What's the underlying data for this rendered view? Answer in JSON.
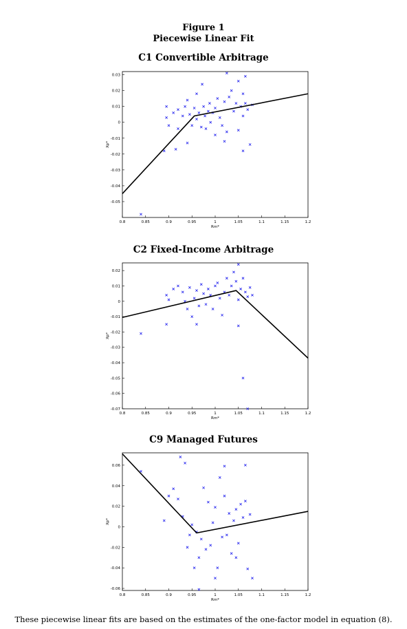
{
  "figure": {
    "label": "Figure 1",
    "title": "Piecewise Linear Fit",
    "caption": "These piecewise linear fits are based on the estimates of the one-factor model in equation (8)."
  },
  "chart_data": [
    {
      "type": "scatter",
      "title": "C1 Convertible Arbitrage",
      "xlabel": "Rm*",
      "ylabel": "Xp*",
      "xlim": [
        0.8,
        1.2
      ],
      "ylim": [
        -0.06,
        0.032
      ],
      "xticks": [
        "0.8",
        "0.85",
        "0.9",
        "0.95",
        "1",
        "1.05",
        "1.1",
        "1.15",
        "1.2"
      ],
      "yticks": [
        "0.03",
        "0.02",
        "0.01",
        "0",
        "-0.01",
        "-0.02",
        "-0.03",
        "-0.04",
        "-0.05"
      ],
      "ytick_values": [
        0.03,
        0.02,
        0.01,
        0,
        -0.01,
        -0.02,
        -0.03,
        -0.04,
        -0.05
      ],
      "fit": [
        [
          0.8,
          -0.045
        ],
        [
          0.955,
          0.004
        ],
        [
          1.2,
          0.018
        ]
      ],
      "points": [
        [
          0.895,
          0.01
        ],
        [
          0.895,
          0.003
        ],
        [
          0.9,
          -0.002
        ],
        [
          0.91,
          0.006
        ],
        [
          0.915,
          -0.017
        ],
        [
          0.92,
          0.008
        ],
        [
          0.93,
          0.004
        ],
        [
          0.935,
          0.01
        ],
        [
          0.94,
          0.014
        ],
        [
          0.94,
          -0.013
        ],
        [
          0.945,
          0.005
        ],
        [
          0.95,
          -0.002
        ],
        [
          0.955,
          0.009
        ],
        [
          0.96,
          0.002
        ],
        [
          0.96,
          0.018
        ],
        [
          0.965,
          0.006
        ],
        [
          0.97,
          -0.003
        ],
        [
          0.972,
          0.024
        ],
        [
          0.975,
          0.01
        ],
        [
          0.978,
          0.004
        ],
        [
          0.98,
          -0.004
        ],
        [
          0.985,
          0.007
        ],
        [
          0.988,
          0.012
        ],
        [
          0.99,
          0.0
        ],
        [
          0.995,
          0.006
        ],
        [
          1.0,
          0.009
        ],
        [
          1.005,
          0.015
        ],
        [
          1.01,
          0.003
        ],
        [
          1.015,
          -0.002
        ],
        [
          1.02,
          0.013
        ],
        [
          1.025,
          -0.006
        ],
        [
          1.03,
          0.016
        ],
        [
          1.025,
          0.031
        ],
        [
          1.035,
          0.02
        ],
        [
          1.04,
          0.007
        ],
        [
          1.045,
          0.012
        ],
        [
          1.05,
          0.026
        ],
        [
          1.05,
          -0.005
        ],
        [
          1.055,
          0.01
        ],
        [
          1.06,
          0.018
        ],
        [
          1.06,
          0.004
        ],
        [
          1.065,
          0.012
        ],
        [
          1.07,
          0.008
        ],
        [
          1.075,
          -0.014
        ],
        [
          1.08,
          0.011
        ],
        [
          1.065,
          0.029
        ],
        [
          0.89,
          -0.018
        ],
        [
          1.0,
          -0.008
        ],
        [
          1.02,
          -0.012
        ],
        [
          0.92,
          -0.004
        ],
        [
          1.06,
          -0.018
        ],
        [
          0.84,
          -0.058
        ]
      ]
    },
    {
      "type": "scatter",
      "title": "C2 Fixed-Income Arbitrage",
      "xlabel": "Rm*",
      "ylabel": "Xp*",
      "xlim": [
        0.8,
        1.2
      ],
      "ylim": [
        -0.07,
        0.025
      ],
      "xticks": [
        "0.8",
        "0.85",
        "0.9",
        "0.95",
        "1",
        "1.05",
        "1.1",
        "1.15",
        "1.2"
      ],
      "yticks": [
        "0.02",
        "0.01",
        "0",
        "-0.01",
        "-0.02",
        "-0.03",
        "-0.04",
        "-0.05",
        "-0.06",
        "-0.07"
      ],
      "ytick_values": [
        0.02,
        0.01,
        0,
        -0.01,
        -0.02,
        -0.03,
        -0.04,
        -0.05,
        -0.06,
        -0.07
      ],
      "fit": [
        [
          0.8,
          -0.0105
        ],
        [
          1.045,
          0.007
        ],
        [
          1.2,
          -0.037
        ]
      ],
      "points": [
        [
          0.84,
          -0.021
        ],
        [
          0.895,
          0.004
        ],
        [
          0.895,
          -0.015
        ],
        [
          0.9,
          0.001
        ],
        [
          0.91,
          0.008
        ],
        [
          0.92,
          0.01
        ],
        [
          0.93,
          0.006
        ],
        [
          0.935,
          0.0
        ],
        [
          0.94,
          -0.005
        ],
        [
          0.945,
          0.009
        ],
        [
          0.95,
          -0.01
        ],
        [
          0.955,
          0.002
        ],
        [
          0.96,
          0.007
        ],
        [
          0.965,
          -0.003
        ],
        [
          0.97,
          0.011
        ],
        [
          0.975,
          0.005
        ],
        [
          0.98,
          -0.002
        ],
        [
          0.985,
          0.008
        ],
        [
          0.99,
          0.004
        ],
        [
          0.995,
          -0.005
        ],
        [
          1.0,
          0.01
        ],
        [
          1.005,
          0.012
        ],
        [
          1.01,
          0.002
        ],
        [
          1.015,
          -0.009
        ],
        [
          1.02,
          0.006
        ],
        [
          1.025,
          0.015
        ],
        [
          1.03,
          0.004
        ],
        [
          1.035,
          0.01
        ],
        [
          1.04,
          0.019
        ],
        [
          1.045,
          0.013
        ],
        [
          1.05,
          0.024
        ],
        [
          1.05,
          0.001
        ],
        [
          1.055,
          0.008
        ],
        [
          1.06,
          0.015
        ],
        [
          1.065,
          0.006
        ],
        [
          1.07,
          0.003
        ],
        [
          1.075,
          0.009
        ],
        [
          1.08,
          0.004
        ],
        [
          1.06,
          -0.05
        ],
        [
          1.07,
          -0.07
        ],
        [
          1.05,
          -0.016
        ],
        [
          0.96,
          -0.015
        ]
      ]
    },
    {
      "type": "scatter",
      "title": "C9 Managed Futures",
      "xlabel": "Rm*",
      "ylabel": "Xp*",
      "xlim": [
        0.8,
        1.2
      ],
      "ylim": [
        -0.062,
        0.072
      ],
      "xticks": [
        "0.8",
        "0.85",
        "0.9",
        "0.95",
        "1",
        "1.05",
        "1.1",
        "1.15",
        "1.2"
      ],
      "yticks": [
        "0.06",
        "0.04",
        "0.02",
        "0",
        "-0.02",
        "-0.04",
        "-0.06"
      ],
      "ytick_values": [
        0.06,
        0.04,
        0.02,
        0,
        -0.02,
        -0.04,
        -0.06
      ],
      "fit": [
        [
          0.8,
          0.071
        ],
        [
          0.96,
          -0.006
        ],
        [
          1.2,
          0.015
        ]
      ],
      "points": [
        [
          0.84,
          0.054
        ],
        [
          0.89,
          0.006
        ],
        [
          0.9,
          0.03
        ],
        [
          0.91,
          0.037
        ],
        [
          0.92,
          0.027
        ],
        [
          0.925,
          0.068
        ],
        [
          0.93,
          0.01
        ],
        [
          0.935,
          0.062
        ],
        [
          0.94,
          -0.02
        ],
        [
          0.945,
          -0.008
        ],
        [
          0.95,
          0.002
        ],
        [
          0.955,
          -0.04
        ],
        [
          0.96,
          -0.005
        ],
        [
          0.965,
          -0.03
        ],
        [
          0.97,
          -0.012
        ],
        [
          0.975,
          0.038
        ],
        [
          0.98,
          -0.022
        ],
        [
          0.985,
          0.024
        ],
        [
          0.99,
          -0.018
        ],
        [
          0.995,
          0.004
        ],
        [
          1.0,
          0.019
        ],
        [
          1.005,
          -0.04
        ],
        [
          1.01,
          0.048
        ],
        [
          1.015,
          -0.01
        ],
        [
          1.02,
          0.03
        ],
        [
          1.025,
          -0.008
        ],
        [
          1.03,
          0.013
        ],
        [
          1.035,
          -0.026
        ],
        [
          1.04,
          0.006
        ],
        [
          1.045,
          0.017
        ],
        [
          1.05,
          -0.016
        ],
        [
          1.055,
          0.022
        ],
        [
          1.06,
          0.009
        ],
        [
          1.065,
          0.06
        ],
        [
          1.07,
          -0.041
        ],
        [
          1.075,
          0.012
        ],
        [
          1.08,
          -0.05
        ],
        [
          1.065,
          0.025
        ],
        [
          1.02,
          0.059
        ],
        [
          0.965,
          -0.061
        ],
        [
          1.045,
          -0.03
        ],
        [
          1.0,
          -0.05
        ]
      ]
    }
  ]
}
